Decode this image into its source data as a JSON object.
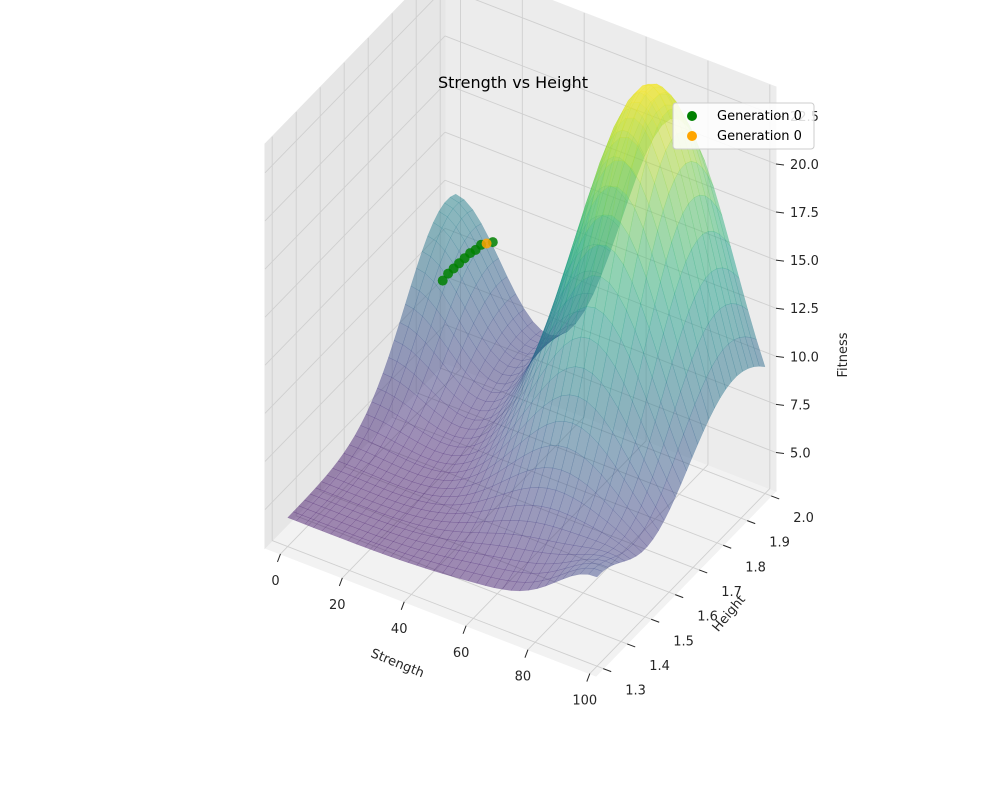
{
  "chart_data": {
    "type": "surface3d",
    "title": "Strength vs Height",
    "xlabel": "Strength",
    "ylabel": "Height",
    "zlabel": "Fitness",
    "xlim": [
      -5,
      102
    ],
    "ylim": [
      1.27,
      2.02
    ],
    "zlim": [
      3.0,
      24.0
    ],
    "x_ticks": [
      0,
      20,
      40,
      60,
      80,
      100
    ],
    "x_tick_labels": [
      "0",
      "20",
      "40",
      "60",
      "80",
      "100"
    ],
    "y_ticks": [
      1.3,
      1.4,
      1.5,
      1.6,
      1.7,
      1.8,
      1.9,
      2.0
    ],
    "y_tick_labels": [
      "1.3",
      "1.4",
      "1.5",
      "1.6",
      "1.7",
      "1.8",
      "1.9",
      "2.0"
    ],
    "z_ticks": [
      5.0,
      7.5,
      10.0,
      12.5,
      15.0,
      17.5,
      20.0,
      22.5
    ],
    "z_tick_labels": [
      "5.0",
      "7.5",
      "10.0",
      "12.5",
      "15.0",
      "17.5",
      "20.0",
      "22.5"
    ],
    "grid": true,
    "legend_position": "top-right",
    "colormap": "viridis",
    "surface_alpha": 0.5,
    "surface_range": {
      "strength": [
        0,
        100
      ],
      "height": [
        1.3,
        2.0
      ]
    },
    "series": [
      {
        "name": "Generation 0",
        "color": "#008000",
        "points": [
          {
            "strength": 2,
            "height": 1.92,
            "fitness": 9.0
          },
          {
            "strength": 3,
            "height": 1.93,
            "fitness": 9.3
          },
          {
            "strength": 4,
            "height": 1.94,
            "fitness": 9.5
          },
          {
            "strength": 5,
            "height": 1.95,
            "fitness": 9.7
          },
          {
            "strength": 6,
            "height": 1.96,
            "fitness": 9.9
          },
          {
            "strength": 7,
            "height": 1.97,
            "fitness": 10.1
          },
          {
            "strength": 8,
            "height": 1.98,
            "fitness": 10.2
          },
          {
            "strength": 9,
            "height": 1.99,
            "fitness": 10.4
          },
          {
            "strength": 12,
            "height": 2.0,
            "fitness": 10.6
          }
        ]
      },
      {
        "name": "Generation 0",
        "color": "#FFA500",
        "points": [
          {
            "strength": 10,
            "height": 2.0,
            "fitness": 10.4
          }
        ]
      }
    ]
  }
}
